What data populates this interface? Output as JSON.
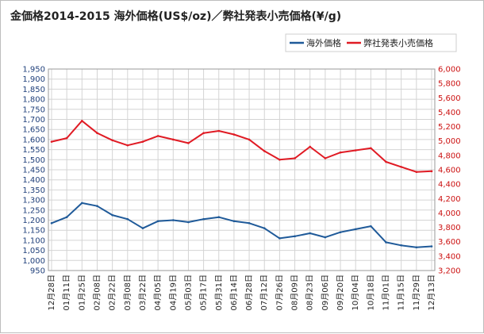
{
  "chart_data": {
    "type": "line",
    "title": "金価格2014-2015 海外価格(US$/oz)／弊社発表小売価格(¥/g)",
    "grid": true,
    "legend_position": "top-right",
    "categories": [
      "12月28日",
      "01月11日",
      "01月25日",
      "02月08日",
      "02月22日",
      "03月08日",
      "03月22日",
      "04月05日",
      "04月19日",
      "05月03日",
      "05月17日",
      "05月31日",
      "06月14日",
      "06月28日",
      "07月12日",
      "07月26日",
      "08月09日",
      "08月23日",
      "09月06日",
      "09月20日",
      "10月04日",
      "10月18日",
      "11月01日",
      "11月15日",
      "11月29日",
      "12月13日"
    ],
    "y_left": {
      "min": 950,
      "max": 1950,
      "step": 50,
      "tick_labels": [
        "950",
        "1,000",
        "1,050",
        "1,100",
        "1,150",
        "1,200",
        "1,250",
        "1,300",
        "1,350",
        "1,400",
        "1,450",
        "1,500",
        "1,550",
        "1,600",
        "1,650",
        "1,700",
        "1,750",
        "1,800",
        "1,850",
        "1,900",
        "1,950"
      ]
    },
    "y_right": {
      "min": 3200,
      "max": 6000,
      "step": 200,
      "tick_labels": [
        "3,200",
        "3,400",
        "3,600",
        "3,800",
        "4,000",
        "4,200",
        "4,400",
        "4,600",
        "4,800",
        "5,000",
        "5,200",
        "5,400",
        "5,600",
        "5,800",
        "6,000"
      ]
    },
    "series": [
      {
        "name": "海外価格",
        "axis": "left",
        "color": "#1f5a99",
        "values": [
          1185,
          1215,
          1285,
          1270,
          1225,
          1205,
          1160,
          1195,
          1200,
          1190,
          1205,
          1215,
          1195,
          1185,
          1160,
          1110,
          1120,
          1135,
          1115,
          1140,
          1155,
          1170,
          1090,
          1075,
          1065,
          1070
        ]
      },
      {
        "name": "弊社発表小売価格",
        "axis": "right",
        "color": "#e01b24",
        "values": [
          4990,
          5040,
          5280,
          5110,
          5010,
          4940,
          4990,
          5070,
          5020,
          4970,
          5110,
          5140,
          5090,
          5020,
          4860,
          4740,
          4760,
          4920,
          4760,
          4840,
          4870,
          4900,
          4710,
          4640,
          4570,
          4580
        ]
      }
    ]
  },
  "colors": {
    "left_axis_text": "#1f3f7a",
    "right_axis_text": "#cc1111",
    "grid": "#d4d4d4"
  }
}
